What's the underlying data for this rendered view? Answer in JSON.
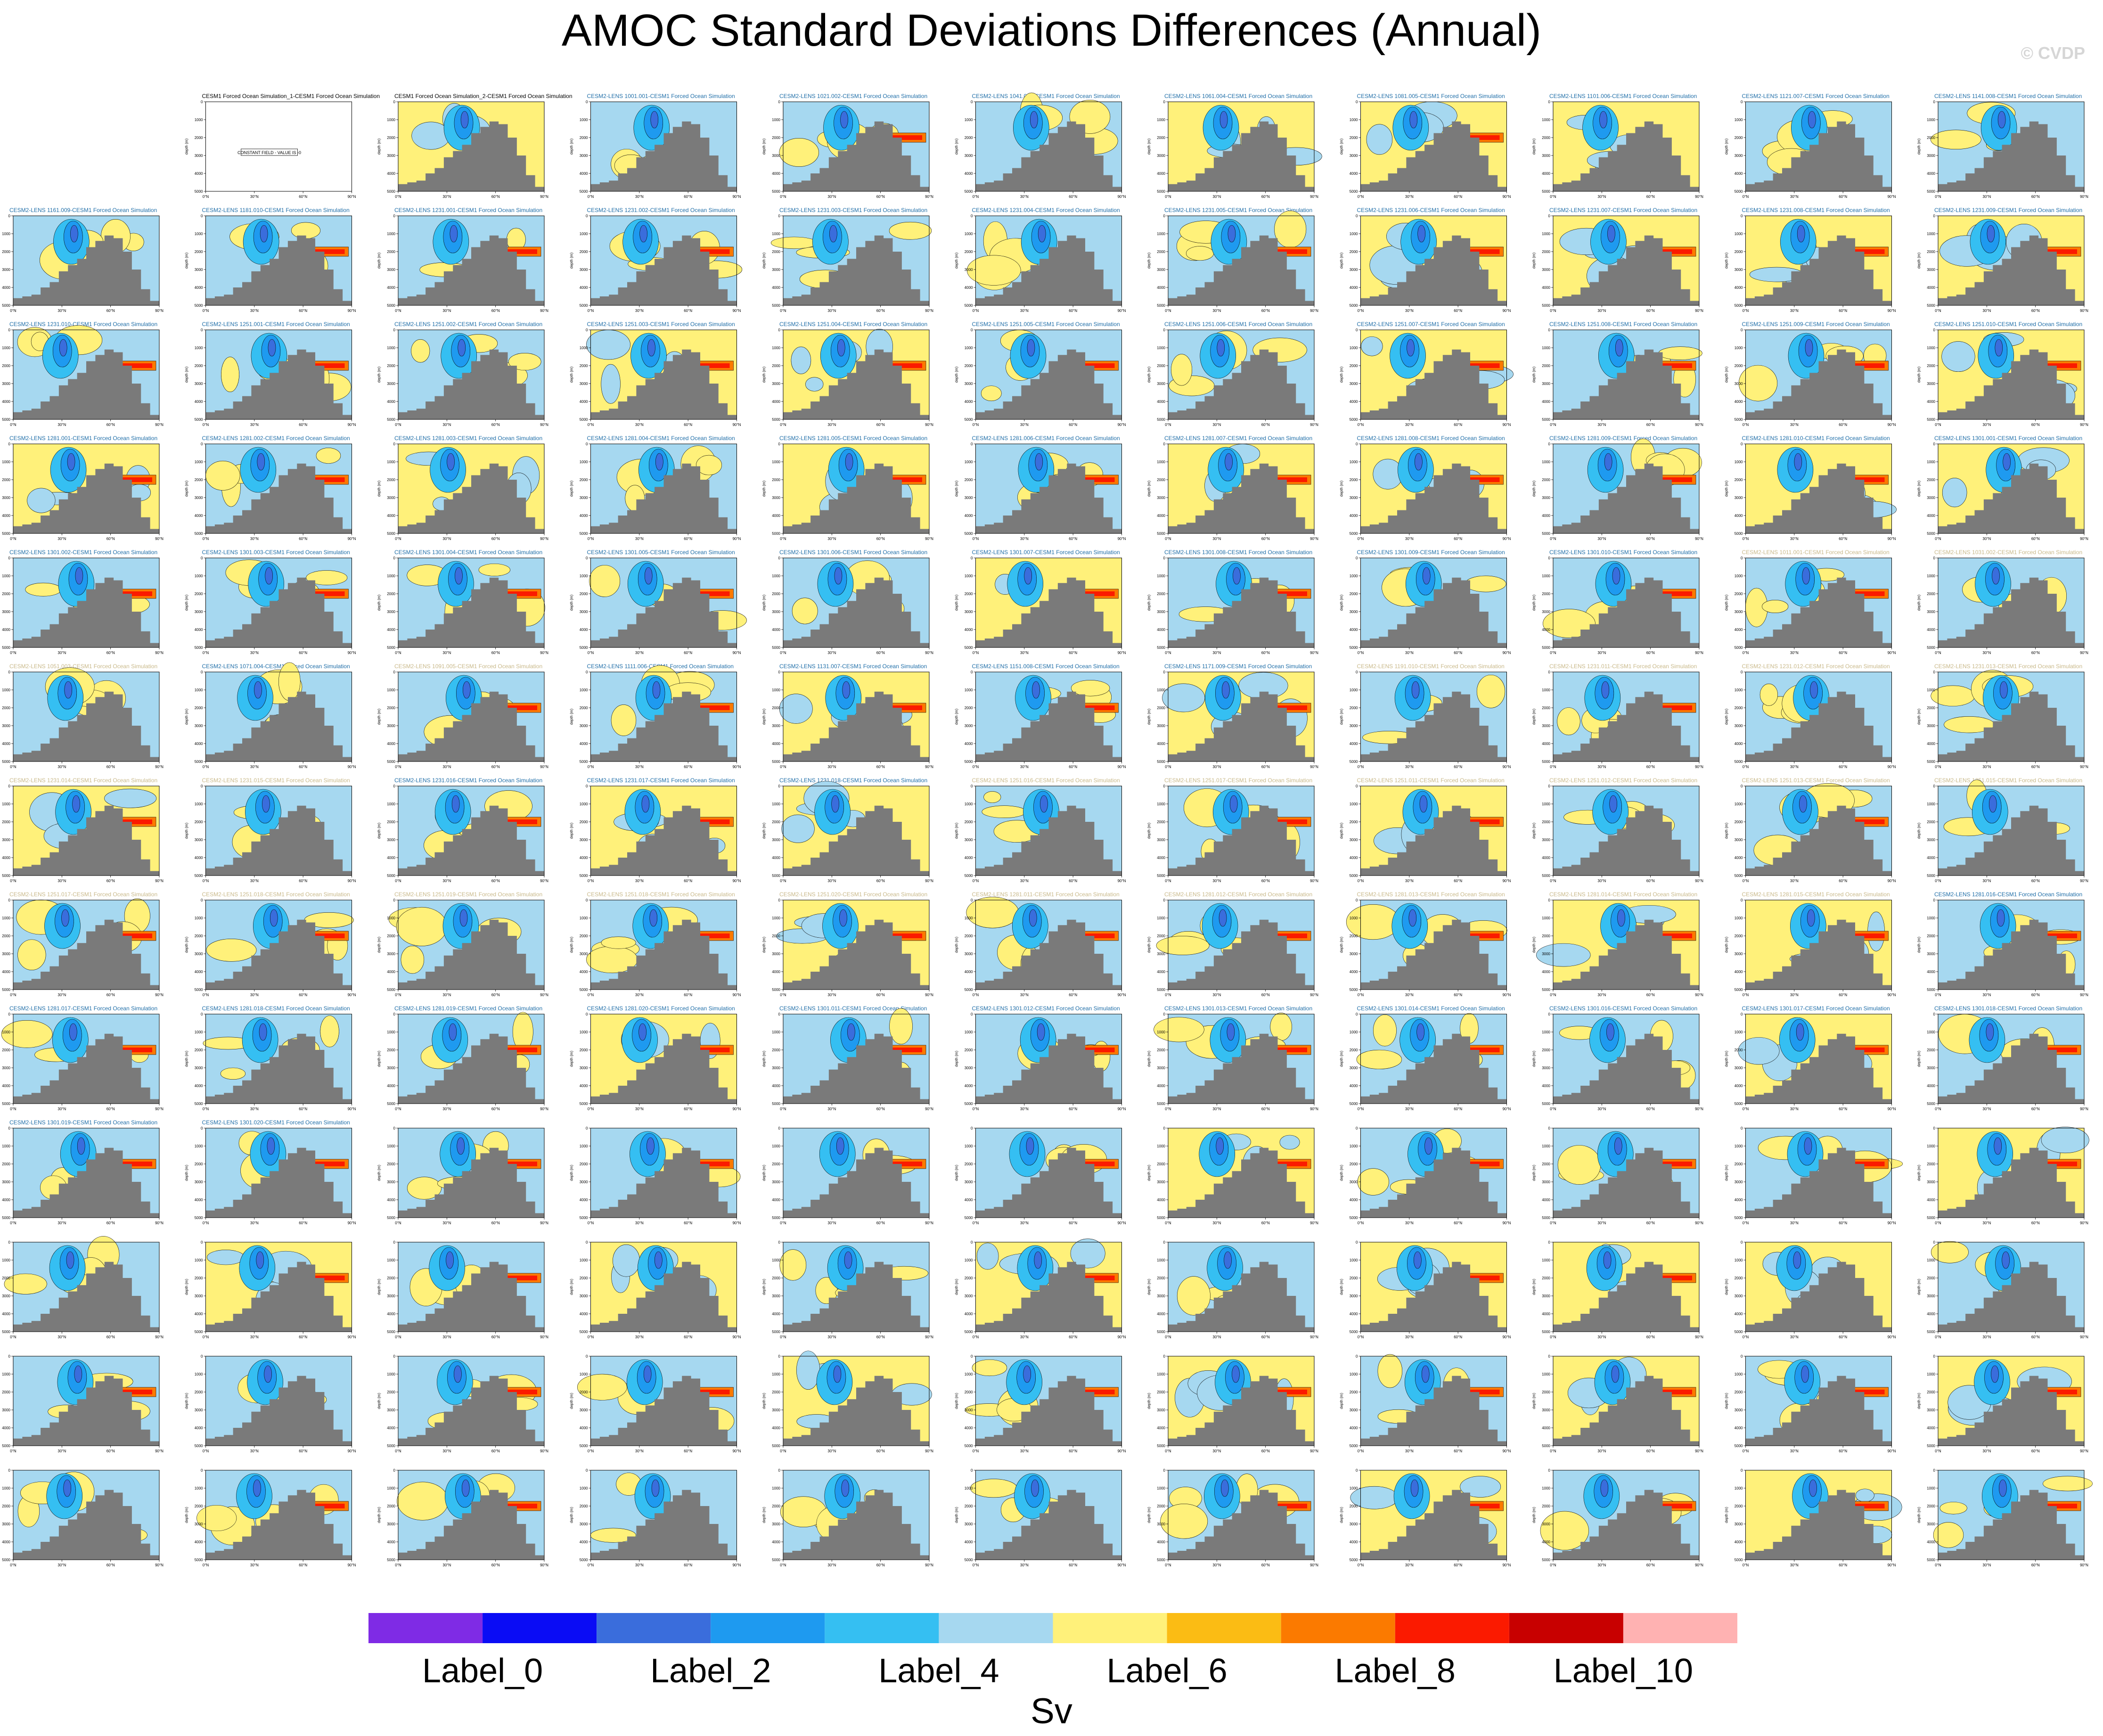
{
  "title": "AMOC Standard Deviations Differences (Annual)",
  "watermark": "© CVDP",
  "units": "Sv",
  "colors": {
    "ocean_floor": "#7a7a7a",
    "contour_line": "#000000",
    "title_cesm2": "#1f6ea8",
    "title_faded": "#c9b98a"
  },
  "colorbar": {
    "colors": [
      "#7f2be5",
      "#0a0cf5",
      "#3a6ddc",
      "#1e9af0",
      "#35bff2",
      "#a6d8f0",
      "#fff17a",
      "#fbbc14",
      "#fb7a00",
      "#fb1a00",
      "#c80000",
      "#ffb2b2"
    ],
    "labels": [
      "Label_0",
      "Label_2",
      "Label_4",
      "Label_6",
      "Label_8",
      "Label_10"
    ]
  },
  "panel_axis": {
    "y_ticks": [
      "0",
      "1000",
      "2000",
      "3000",
      "4000",
      "5000"
    ],
    "y_label": "depth (m)",
    "x_ticks": [
      "0°N",
      "30°N",
      "60°N",
      "90°N"
    ]
  },
  "constant_field_note": "CONSTANT FIELD - VALUE IS -0",
  "chart_data": {
    "type": "heatmap",
    "layout": "13 rows x 11 columns of latitude-depth contour panels; first row starts at column 2",
    "panels": [
      {
        "title": "CESM1 Forced Ocean Simulation_1-CESM1 Forced Ocean Simulation",
        "constant": true
      },
      {
        "title": "CESM1 Forced Ocean Simulation_2-CESM1 Forced Ocean Simulation",
        "bg": "yellow",
        "band": false
      },
      {
        "title": "CESM2-LENS 1001.001-CESM1 Forced Ocean Simulation",
        "bg": "blue",
        "band": false
      },
      {
        "title": "CESM2-LENS 1021.002-CESM1 Forced Ocean Simulation",
        "bg": "blue",
        "band": true
      },
      {
        "title": "CESM2-LENS 1041.003-CESM1 Forced Ocean Simulation",
        "bg": "blue",
        "band": false
      },
      {
        "title": "CESM2-LENS 1061.004-CESM1 Forced Ocean Simulation",
        "bg": "yellow",
        "band": false
      },
      {
        "title": "CESM2-LENS 1081.005-CESM1 Forced Ocean Simulation",
        "bg": "yellow",
        "band": true
      },
      {
        "title": "CESM2-LENS 1101.006-CESM1 Forced Ocean Simulation",
        "bg": "yellow",
        "band": false
      },
      {
        "title": "CESM2-LENS 1121.007-CESM1 Forced Ocean Simulation",
        "bg": "blue",
        "band": false
      },
      {
        "title": "CESM2-LENS 1141.008-CESM1 Forced Ocean Simulation",
        "bg": "blue",
        "band": false
      },
      {
        "title": "CESM2-LENS 1161.009-CESM1 Forced Ocean Simulation",
        "bg": "blue",
        "band": false
      },
      {
        "title": "CESM2-LENS 1181.010-CESM1 Forced Ocean Simulation",
        "bg": "blue",
        "band": true
      },
      {
        "title": "CESM2-LENS 1231.001-CESM1 Forced Ocean Simulation",
        "bg": "blue",
        "band": true
      },
      {
        "title": "CESM2-LENS 1231.002-CESM1 Forced Ocean Simulation",
        "bg": "blue",
        "band": true
      },
      {
        "title": "CESM2-LENS 1231.003-CESM1 Forced Ocean Simulation",
        "bg": "blue",
        "band": false
      },
      {
        "title": "CESM2-LENS 1231.004-CESM1 Forced Ocean Simulation",
        "bg": "blue",
        "band": false
      },
      {
        "title": "CESM2-LENS 1231.005-CESM1 Forced Ocean Simulation",
        "bg": "blue",
        "band": true
      },
      {
        "title": "CESM2-LENS 1231.006-CESM1 Forced Ocean Simulation",
        "bg": "yellow",
        "band": true
      },
      {
        "title": "CESM2-LENS 1231.007-CESM1 Forced Ocean Simulation",
        "bg": "yellow",
        "band": true
      },
      {
        "title": "CESM2-LENS 1231.008-CESM1 Forced Ocean Simulation",
        "bg": "yellow",
        "band": true
      },
      {
        "title": "CESM2-LENS 1231.009-CESM1 Forced Ocean Simulation",
        "bg": "yellow",
        "band": true
      },
      {
        "title": "CESM2-LENS 1231.010-CESM1 Forced Ocean Simulation",
        "bg": "blue",
        "band": true
      },
      {
        "title": "CESM2-LENS 1251.001-CESM1 Forced Ocean Simulation",
        "bg": "blue",
        "band": true
      },
      {
        "title": "CESM2-LENS 1251.002-CESM1 Forced Ocean Simulation",
        "bg": "blue",
        "band": false
      },
      {
        "title": "CESM2-LENS 1251.003-CESM1 Forced Ocean Simulation",
        "bg": "yellow",
        "band": true
      },
      {
        "title": "CESM2-LENS 1251.004-CESM1 Forced Ocean Simulation",
        "bg": "yellow",
        "band": true
      },
      {
        "title": "CESM2-LENS 1251.005-CESM1 Forced Ocean Simulation",
        "bg": "blue",
        "band": true
      },
      {
        "title": "CESM2-LENS 1251.006-CESM1 Forced Ocean Simulation",
        "bg": "blue",
        "band": false
      },
      {
        "title": "CESM2-LENS 1251.007-CESM1 Forced Ocean Simulation",
        "bg": "yellow",
        "band": true
      },
      {
        "title": "CESM2-LENS 1251.008-CESM1 Forced Ocean Simulation",
        "bg": "blue",
        "band": true
      },
      {
        "title": "CESM2-LENS 1251.009-CESM1 Forced Ocean Simulation",
        "bg": "blue",
        "band": true
      },
      {
        "title": "CESM2-LENS 1251.010-CESM1 Forced Ocean Simulation",
        "bg": "yellow",
        "band": true
      },
      {
        "title": "CESM2-LENS 1281.001-CESM1 Forced Ocean Simulation",
        "bg": "yellow",
        "band": true
      },
      {
        "title": "CESM2-LENS 1281.002-CESM1 Forced Ocean Simulation",
        "bg": "blue",
        "band": true
      },
      {
        "title": "CESM2-LENS 1281.003-CESM1 Forced Ocean Simulation",
        "bg": "yellow",
        "band": false
      },
      {
        "title": "CESM2-LENS 1281.004-CESM1 Forced Ocean Simulation",
        "bg": "blue",
        "band": false
      },
      {
        "title": "CESM2-LENS 1281.005-CESM1 Forced Ocean Simulation",
        "bg": "yellow",
        "band": true
      },
      {
        "title": "CESM2-LENS 1281.006-CESM1 Forced Ocean Simulation",
        "bg": "blue",
        "band": true
      },
      {
        "title": "CESM2-LENS 1281.007-CESM1 Forced Ocean Simulation",
        "bg": "yellow",
        "band": true
      },
      {
        "title": "CESM2-LENS 1281.008-CESM1 Forced Ocean Simulation",
        "bg": "yellow",
        "band": true
      },
      {
        "title": "CESM2-LENS 1281.009-CESM1 Forced Ocean Simulation",
        "bg": "blue",
        "band": true
      },
      {
        "title": "CESM2-LENS 1281.010-CESM1 Forced Ocean Simulation",
        "bg": "yellow",
        "band": true
      },
      {
        "title": "CESM2-LENS 1301.001-CESM1 Forced Ocean Simulation",
        "bg": "yellow",
        "band": false
      },
      {
        "title": "CESM2-LENS 1301.002-CESM1 Forced Ocean Simulation",
        "bg": "blue",
        "band": true
      },
      {
        "title": "CESM2-LENS 1301.003-CESM1 Forced Ocean Simulation",
        "bg": "blue",
        "band": true
      },
      {
        "title": "CESM2-LENS 1301.004-CESM1 Forced Ocean Simulation",
        "bg": "blue",
        "band": true
      },
      {
        "title": "CESM2-LENS 1301.005-CESM1 Forced Ocean Simulation",
        "bg": "blue",
        "band": true
      },
      {
        "title": "CESM2-LENS 1301.006-CESM1 Forced Ocean Simulation",
        "bg": "blue",
        "band": false
      },
      {
        "title": "CESM2-LENS 1301.007-CESM1 Forced Ocean Simulation",
        "bg": "yellow",
        "band": true
      },
      {
        "title": "CESM2-LENS 1301.008-CESM1 Forced Ocean Simulation",
        "bg": "blue",
        "band": true
      },
      {
        "title": "CESM2-LENS 1301.009-CESM1 Forced Ocean Simulation",
        "bg": "blue",
        "band": false
      },
      {
        "title": "CESM2-LENS 1301.010-CESM1 Forced Ocean Simulation",
        "bg": "blue",
        "band": true
      },
      {
        "title": "CESM2-LENS 1011.001-CESM1 Forced Ocean Simulation",
        "bg": "blue",
        "band": true,
        "faded": true
      },
      {
        "title": "CESM2-LENS 1031.002-CESM1 Forced Ocean Simulation",
        "bg": "blue",
        "band": false,
        "faded": true
      },
      {
        "title": "CESM2-LENS 1051.003-CESM1 Forced Ocean Simulation",
        "bg": "blue",
        "band": false,
        "faded": true
      },
      {
        "title": "CESM2-LENS 1071.004-CESM1 Forced Ocean Simulation",
        "bg": "blue",
        "band": false
      },
      {
        "title": "CESM2-LENS 1091.005-CESM1 Forced Ocean Simulation",
        "bg": "blue",
        "band": true,
        "faded": true
      },
      {
        "title": "CESM2-LENS 1111.006-CESM1 Forced Ocean Simulation",
        "bg": "blue",
        "band": true
      },
      {
        "title": "CESM2-LENS 1131.007-CESM1 Forced Ocean Simulation",
        "bg": "yellow",
        "band": true
      },
      {
        "title": "CESM2-LENS 1151.008-CESM1 Forced Ocean Simulation",
        "bg": "blue",
        "band": true
      },
      {
        "title": "CESM2-LENS 1171.009-CESM1 Forced Ocean Simulation",
        "bg": "yellow",
        "band": true
      },
      {
        "title": "CESM2-LENS 1191.010-CESM1 Forced Ocean Simulation",
        "bg": "blue",
        "band": false,
        "faded": true
      },
      {
        "title": "CESM2-LENS 1231.011-CESM1 Forced Ocean Simulation",
        "bg": "blue",
        "band": true,
        "faded": true
      },
      {
        "title": "CESM2-LENS 1231.012-CESM1 Forced Ocean Simulation",
        "bg": "blue",
        "band": false,
        "faded": true
      },
      {
        "title": "CESM2-LENS 1231.013-CESM1 Forced Ocean Simulation",
        "bg": "blue",
        "band": false,
        "faded": true
      },
      {
        "title": "CESM2-LENS 1231.014-CESM1 Forced Ocean Simulation",
        "bg": "yellow",
        "band": true,
        "faded": true
      },
      {
        "title": "CESM2-LENS 1231.015-CESM1 Forced Ocean Simulation",
        "bg": "blue",
        "band": false,
        "faded": true
      },
      {
        "title": "CESM2-LENS 1231.016-CESM1 Forced Ocean Simulation",
        "bg": "blue",
        "band": true
      },
      {
        "title": "CESM2-LENS 1231.017-CESM1 Forced Ocean Simulation",
        "bg": "yellow",
        "band": true
      },
      {
        "title": "CESM2-LENS 1231.018-CESM1 Forced Ocean Simulation",
        "bg": "yellow",
        "band": false
      },
      {
        "title": "CESM2-LENS 1251.016-CESM1 Forced Ocean Simulation",
        "bg": "blue",
        "band": false,
        "faded": true
      },
      {
        "title": "CESM2-LENS 1251.017-CESM1 Forced Ocean Simulation",
        "bg": "blue",
        "band": true,
        "faded": true
      },
      {
        "title": "CESM2-LENS 1251.011-CESM1 Forced Ocean Simulation",
        "bg": "yellow",
        "band": true,
        "faded": true
      },
      {
        "title": "CESM2-LENS 1251.012-CESM1 Forced Ocean Simulation",
        "bg": "blue",
        "band": false,
        "faded": true
      },
      {
        "title": "CESM2-LENS 1251.013-CESM1 Forced Ocean Simulation",
        "bg": "blue",
        "band": true,
        "faded": true
      },
      {
        "title": "CESM2-LENS 1251.015-CESM1 Forced Ocean Simulation",
        "bg": "blue",
        "band": false,
        "faded": true
      },
      {
        "title": "CESM2-LENS 1251.017-CESM1 Forced Ocean Simulation",
        "bg": "blue",
        "band": true,
        "faded": true
      },
      {
        "title": "CESM2-LENS 1251.018-CESM1 Forced Ocean Simulation",
        "bg": "blue",
        "band": true,
        "faded": true
      },
      {
        "title": "CESM2-LENS 1251.019-CESM1 Forced Ocean Simulation",
        "bg": "blue",
        "band": false,
        "faded": true
      },
      {
        "title": "CESM2-LENS 1251.018-CESM1 Forced Ocean Simulation",
        "bg": "blue",
        "band": true,
        "faded": true
      },
      {
        "title": "CESM2-LENS 1251.020-CESM1 Forced Ocean Simulation",
        "bg": "yellow",
        "band": true,
        "faded": true
      },
      {
        "title": "CESM2-LENS 1281.011-CESM1 Forced Ocean Simulation",
        "bg": "blue",
        "band": true,
        "faded": true
      },
      {
        "title": "CESM2-LENS 1281.012-CESM1 Forced Ocean Simulation",
        "bg": "blue",
        "band": true,
        "faded": true
      },
      {
        "title": "CESM2-LENS 1281.013-CESM1 Forced Ocean Simulation",
        "bg": "blue",
        "band": true,
        "faded": true
      },
      {
        "title": "CESM2-LENS 1281.014-CESM1 Forced Ocean Simulation",
        "bg": "yellow",
        "band": true,
        "faded": true
      },
      {
        "title": "CESM2-LENS 1281.015-CESM1 Forced Ocean Simulation",
        "bg": "yellow",
        "band": true,
        "faded": true
      },
      {
        "title": "CESM2-LENS 1281.016-CESM1 Forced Ocean Simulation",
        "bg": "blue",
        "band": true
      },
      {
        "title": "CESM2-LENS 1281.017-CESM1 Forced Ocean Simulation",
        "bg": "blue",
        "band": true
      },
      {
        "title": "CESM2-LENS 1281.018-CESM1 Forced Ocean Simulation",
        "bg": "blue",
        "band": false
      },
      {
        "title": "CESM2-LENS 1281.019-CESM1 Forced Ocean Simulation",
        "bg": "blue",
        "band": true
      },
      {
        "title": "CESM2-LENS 1281.020-CESM1 Forced Ocean Simulation",
        "bg": "yellow",
        "band": true
      },
      {
        "title": "CESM2-LENS 1301.011-CESM1 Forced Ocean Simulation",
        "bg": "blue",
        "band": true
      },
      {
        "title": "CESM2-LENS 1301.012-CESM1 Forced Ocean Simulation",
        "bg": "blue",
        "band": true
      },
      {
        "title": "CESM2-LENS 1301.013-CESM1 Forced Ocean Simulation",
        "bg": "blue",
        "band": true
      },
      {
        "title": "CESM2-LENS 1301.014-CESM1 Forced Ocean Simulation",
        "bg": "blue",
        "band": true
      },
      {
        "title": "CESM2-LENS 1301.016-CESM1 Forced Ocean Simulation",
        "bg": "blue",
        "band": false
      },
      {
        "title": "CESM2-LENS 1301.017-CESM1 Forced Ocean Simulation",
        "bg": "yellow",
        "band": true
      },
      {
        "title": "CESM2-LENS 1301.018-CESM1 Forced Ocean Simulation",
        "bg": "blue",
        "band": true
      },
      {
        "title": "CESM2-LENS 1301.019-CESM1 Forced Ocean Simulation",
        "bg": "blue",
        "band": true
      },
      {
        "title": "CESM2-LENS 1301.020-CESM1 Forced Ocean Simulation",
        "bg": "blue",
        "band": true
      },
      {
        "title": "",
        "bg": "blue",
        "band": true,
        "faded": true
      },
      {
        "title": "",
        "bg": "blue",
        "band": true,
        "faded": true
      },
      {
        "title": "",
        "bg": "blue",
        "band": true,
        "faded": true
      },
      {
        "title": "",
        "bg": "blue",
        "band": true,
        "faded": true
      },
      {
        "title": "",
        "bg": "yellow",
        "band": true,
        "faded": true
      },
      {
        "title": "",
        "bg": "blue",
        "band": true,
        "faded": true
      },
      {
        "title": "",
        "bg": "blue",
        "band": true,
        "faded": true
      },
      {
        "title": "",
        "bg": "blue",
        "band": true,
        "faded": true
      },
      {
        "title": "",
        "bg": "yellow",
        "band": true,
        "faded": true
      },
      {
        "title": "",
        "bg": "blue",
        "band": false,
        "faded": true
      },
      {
        "title": "",
        "bg": "yellow",
        "band": true,
        "faded": true
      },
      {
        "title": "",
        "bg": "blue",
        "band": true,
        "faded": true
      },
      {
        "title": "",
        "bg": "yellow",
        "band": false,
        "faded": true
      },
      {
        "title": "",
        "bg": "blue",
        "band": false,
        "faded": true
      },
      {
        "title": "",
        "bg": "yellow",
        "band": true,
        "faded": true
      },
      {
        "title": "",
        "bg": "blue",
        "band": false,
        "faded": true
      },
      {
        "title": "",
        "bg": "yellow",
        "band": true,
        "faded": true
      },
      {
        "title": "",
        "bg": "yellow",
        "band": true,
        "faded": true
      },
      {
        "title": "",
        "bg": "yellow",
        "band": false,
        "faded": true
      },
      {
        "title": "",
        "bg": "blue",
        "band": false,
        "faded": true
      },
      {
        "title": "",
        "bg": "blue",
        "band": true,
        "faded": true
      },
      {
        "title": "",
        "bg": "blue",
        "band": false,
        "faded": true
      },
      {
        "title": "",
        "bg": "blue",
        "band": true,
        "faded": true
      },
      {
        "title": "",
        "bg": "blue",
        "band": true,
        "faded": true
      },
      {
        "title": "",
        "bg": "yellow",
        "band": false,
        "faded": true
      },
      {
        "title": "",
        "bg": "blue",
        "band": true,
        "faded": true
      },
      {
        "title": "",
        "bg": "yellow",
        "band": true,
        "faded": true
      },
      {
        "title": "",
        "bg": "blue",
        "band": true,
        "faded": true
      },
      {
        "title": "",
        "bg": "yellow",
        "band": true,
        "faded": true
      },
      {
        "title": "",
        "bg": "blue",
        "band": true,
        "faded": true
      },
      {
        "title": "",
        "bg": "yellow",
        "band": true,
        "faded": true
      },
      {
        "title": "",
        "bg": "blue",
        "band": false,
        "faded": true
      },
      {
        "title": "",
        "bg": "blue",
        "band": true,
        "faded": true
      },
      {
        "title": "",
        "bg": "blue",
        "band": true,
        "faded": true
      },
      {
        "title": "",
        "bg": "blue",
        "band": false,
        "faded": true
      },
      {
        "title": "",
        "bg": "blue",
        "band": false,
        "faded": true
      },
      {
        "title": "",
        "bg": "blue",
        "band": false,
        "faded": true
      },
      {
        "title": "",
        "bg": "blue",
        "band": true,
        "faded": true
      },
      {
        "title": "",
        "bg": "yellow",
        "band": true,
        "faded": true
      },
      {
        "title": "",
        "bg": "blue",
        "band": true,
        "faded": true
      },
      {
        "title": "",
        "bg": "yellow",
        "band": true,
        "faded": true
      },
      {
        "title": "",
        "bg": "blue",
        "band": true,
        "faded": true
      },
      {
        "title": "",
        "bg": "yellow",
        "band": true,
        "faded": true
      }
    ]
  }
}
